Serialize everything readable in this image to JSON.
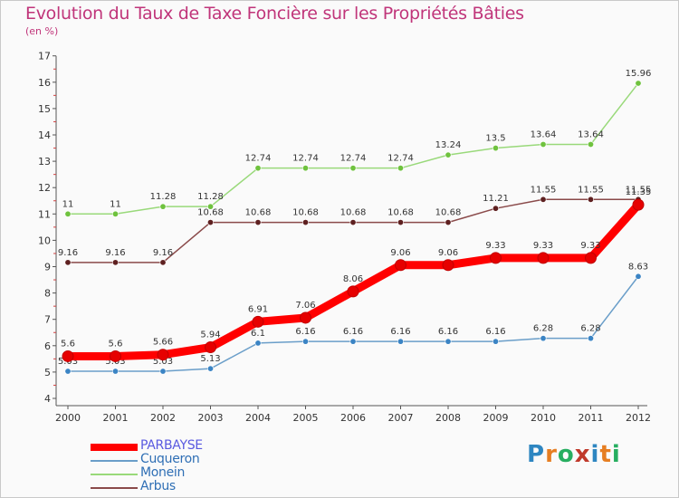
{
  "title": "Evolution du Taux de Taxe Foncière sur les Propriétés Bâties",
  "subtitle": "(en %)",
  "logo": {
    "letters": [
      "P",
      "r",
      "o",
      "x",
      "i",
      "t",
      "i"
    ],
    "colors": [
      "#2e86c1",
      "#e67e22",
      "#27ae60",
      "#c0392b",
      "#2e86c1",
      "#e67e22",
      "#27ae60"
    ]
  },
  "chart_data": {
    "type": "line",
    "x": [
      "2000",
      "2001",
      "2002",
      "2003",
      "2004",
      "2005",
      "2006",
      "2007",
      "2008",
      "2009",
      "2010",
      "2011",
      "2012"
    ],
    "ylim": [
      4,
      17
    ],
    "yticks": [
      "4",
      "5",
      "6",
      "7",
      "8",
      "9",
      "10",
      "11",
      "12",
      "13",
      "14",
      "15",
      "16",
      "17"
    ],
    "grid": false,
    "legend_position": "bottom-left",
    "series": [
      {
        "name": "Cuqueron",
        "color": "#6a9ec9",
        "marker": "#3b84c4",
        "values": [
          5.03,
          5.03,
          5.03,
          5.13,
          6.1,
          6.16,
          6.16,
          6.16,
          6.16,
          6.16,
          6.28,
          6.28,
          8.63
        ],
        "labels": [
          "5.03",
          "5.03",
          "5.03",
          "5.13",
          "6.1",
          "6.16",
          "6.16",
          "6.16",
          "6.16",
          "6.16",
          "6.28",
          "6.28",
          "8.63"
        ]
      },
      {
        "name": "Monein",
        "color": "#99d97a",
        "marker": "#6fc23e",
        "values": [
          11,
          11,
          11.28,
          11.28,
          12.74,
          12.74,
          12.74,
          12.74,
          13.24,
          13.5,
          13.64,
          13.64,
          15.96
        ],
        "labels": [
          "11",
          "11",
          "11.28",
          "11.28",
          "12.74",
          "12.74",
          "12.74",
          "12.74",
          "13.24",
          "13.5",
          "13.64",
          "13.64",
          "15.96"
        ]
      },
      {
        "name": "Arbus",
        "color": "#8a4a4a",
        "marker": "#5e2020",
        "values": [
          9.16,
          9.16,
          9.16,
          10.68,
          10.68,
          10.68,
          10.68,
          10.68,
          10.68,
          11.21,
          11.55,
          11.55,
          11.55
        ],
        "labels": [
          "9.16",
          "9.16",
          "9.16",
          "10.68",
          "10.68",
          "10.68",
          "10.68",
          "10.68",
          "10.68",
          "11.21",
          "11.55",
          "11.55",
          "11.55"
        ]
      },
      {
        "name": "PARBAYSE",
        "color": "#ff0000",
        "marker": "#e60000",
        "values": [
          5.6,
          5.6,
          5.66,
          5.94,
          6.91,
          7.06,
          8.06,
          9.06,
          9.06,
          9.33,
          9.33,
          9.33,
          11.35
        ],
        "labels": [
          "5.6",
          "5.6",
          "5.66",
          "5.94",
          "6.91",
          "7.06",
          "8.06",
          "9.06",
          "9.06",
          "9.33",
          "9.33",
          "9.33",
          "11.35"
        ]
      }
    ],
    "legend": [
      {
        "name": "PARBAYSE",
        "color": "#ff0000",
        "text_color": "#5a5ae0"
      },
      {
        "name": "Cuqueron",
        "color": "#6a9ec9",
        "text_color": "#2f6fb5"
      },
      {
        "name": "Monein",
        "color": "#99d97a",
        "text_color": "#2f6fb5"
      },
      {
        "name": "Arbus",
        "color": "#8a4a4a",
        "text_color": "#2f6fb5"
      }
    ]
  }
}
